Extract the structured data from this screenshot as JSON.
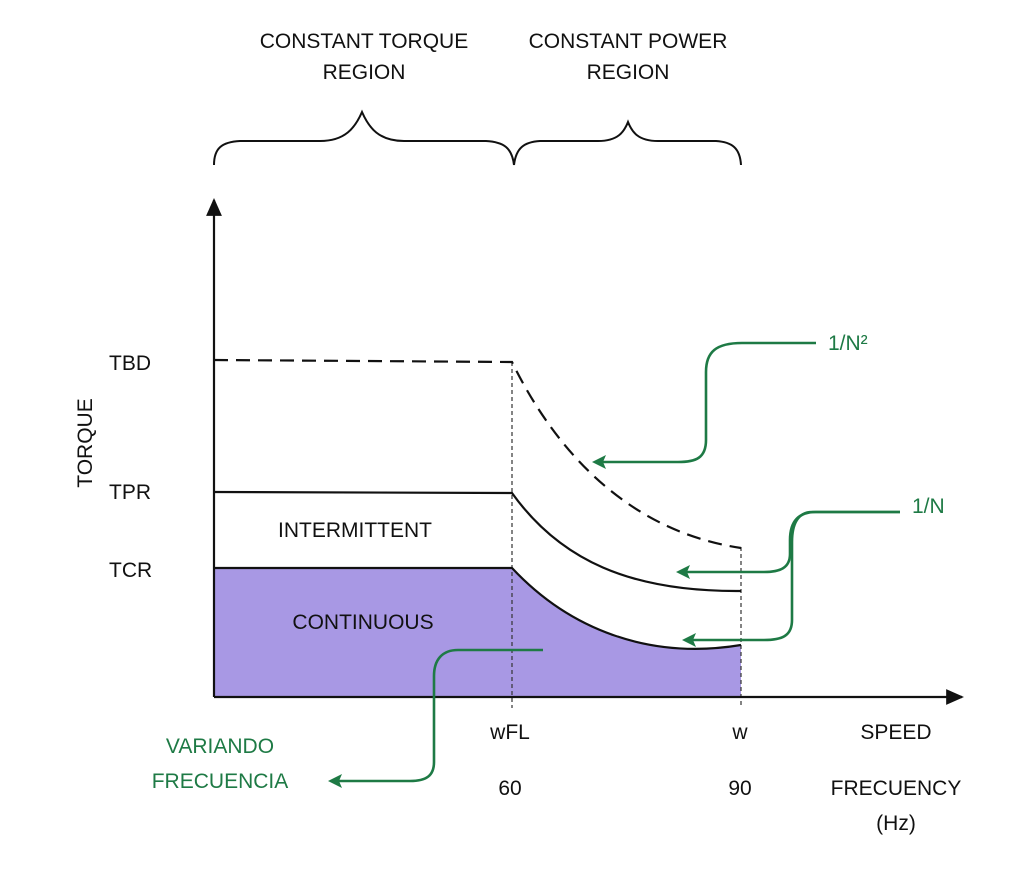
{
  "regions": {
    "constant_torque": [
      "CONSTANT TORQUE",
      "REGION"
    ],
    "constant_power": [
      "CONSTANT POWER",
      "REGION"
    ]
  },
  "axes": {
    "y_label": "TORQUE",
    "x_label": "SPEED",
    "freq_label": [
      "FRECUENCY",
      "(Hz)"
    ]
  },
  "torque_levels": {
    "tbd": "TBD",
    "tpr": "TPR",
    "tcr": "TCR"
  },
  "speed_ticks": {
    "wfl": "wFL",
    "w": "w"
  },
  "freq_ticks": {
    "f60": "60",
    "f90": "90"
  },
  "areas": {
    "intermittent": "INTERMITTENT",
    "continuous": "CONTINUOUS"
  },
  "annotations": {
    "inv_n2": "1/N²",
    "inv_n": "1/N",
    "variando": [
      "VARIANDO",
      "FRECUENCIA"
    ]
  },
  "colors": {
    "continuous_fill": "#a898e4",
    "annotation": "#1e7a45",
    "line": "#111111"
  }
}
